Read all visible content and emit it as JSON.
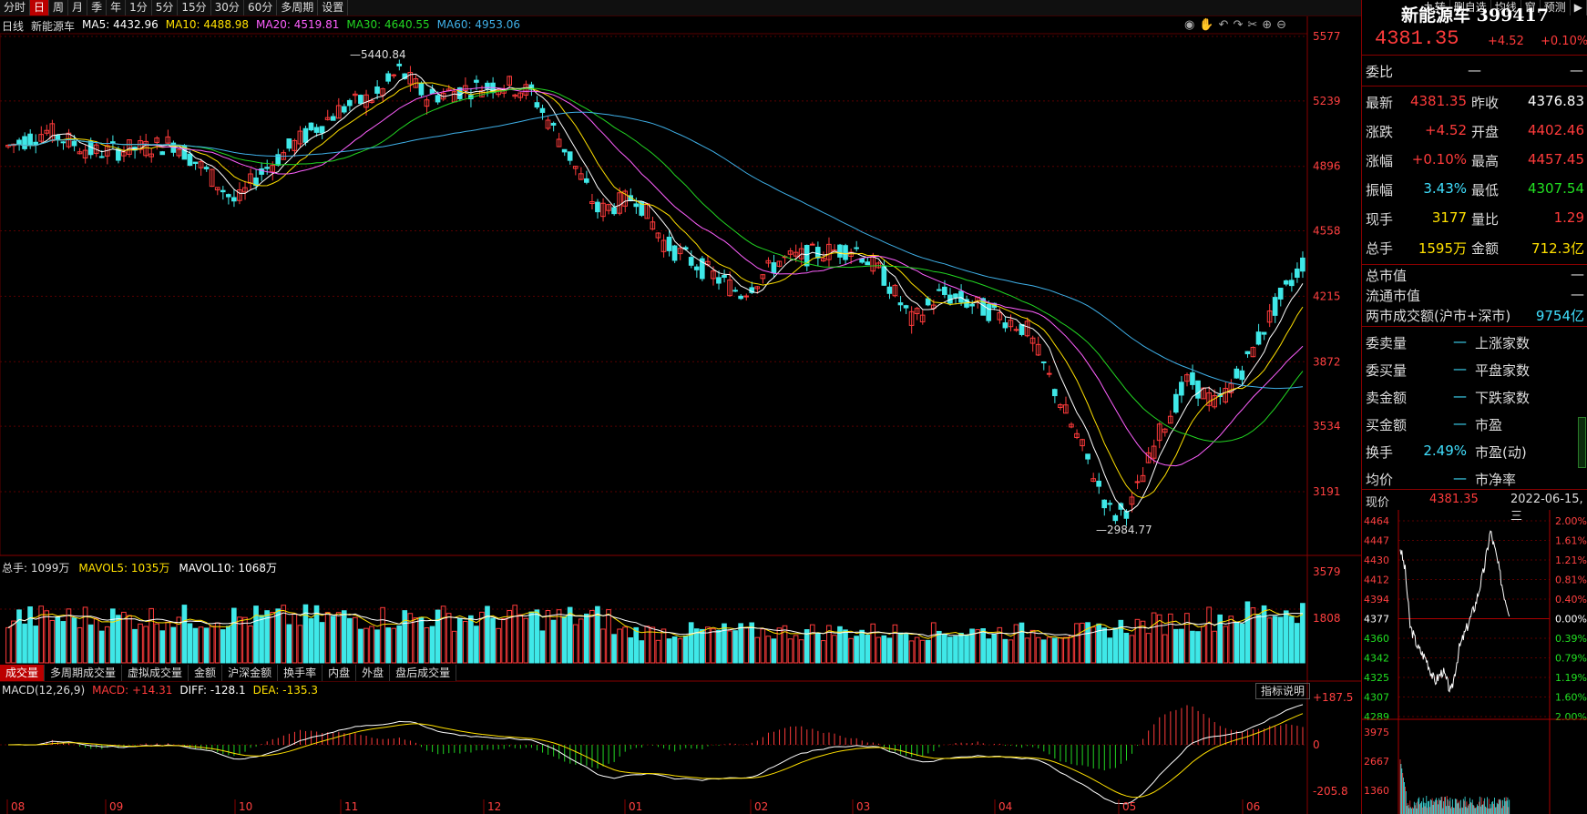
{
  "toolbar": {
    "left": [
      "分时",
      "日",
      "周",
      "月",
      "季",
      "年",
      "1分",
      "5分",
      "15分",
      "30分",
      "60分",
      "多周期",
      "设置"
    ],
    "active_index": 1,
    "right": [
      "九转",
      "删自选",
      "均线",
      "窗",
      "预测"
    ]
  },
  "main_legend": {
    "period": "日线",
    "name": "新能源车",
    "ma5": "MA5: 4432.96",
    "ma10": "MA10: 4488.98",
    "ma20": "MA20: 4519.81",
    "ma30": "MA30: 4640.55",
    "ma60": "MA60: 4953.06"
  },
  "colors": {
    "ma5": "#ffffff",
    "ma10": "#ffe000",
    "ma20": "#ff60ff",
    "ma30": "#22d622",
    "ma60": "#3fb0e8",
    "up": "#ff3b3b",
    "down": "#3fe8e8",
    "grid": "#5a0000"
  },
  "price_axis": [
    "5577",
    "5239",
    "4896",
    "4558",
    "4215",
    "3872",
    "3534",
    "3191"
  ],
  "annotations": {
    "high": "5440.84",
    "low": "2984.77"
  },
  "months": [
    "08",
    "09",
    "10",
    "11",
    "12",
    "01",
    "02",
    "03",
    "04",
    "05",
    "06"
  ],
  "volume_legend": {
    "total": "总手: 1099万",
    "mavol5": "MAVOL5: 1035万",
    "mavol10": "MAVOL10: 1068万"
  },
  "volume_axis": [
    "3579",
    "1808"
  ],
  "volume_tabs": [
    "成交量",
    "多周期成交量",
    "虚拟成交量",
    "金额",
    "沪深金额",
    "换手率",
    "内盘",
    "外盘",
    "盘后成交量"
  ],
  "macd_legend": {
    "name": "MACD(12,26,9)",
    "macd": "MACD: +14.31",
    "diff": "DIFF: -128.1",
    "dea": "DEA: -135.3"
  },
  "macd_axis": [
    "+187.5",
    "0",
    "-205.8"
  ],
  "indicator_button": "指标说明",
  "quote": {
    "title": "新能源车 399417",
    "price": "4381.35",
    "change": "+4.52",
    "pct": "+0.10%",
    "weibi_label": "委比",
    "weibi_val": "—",
    "weibi_val2": "—",
    "rows": [
      {
        "l1": "最新",
        "v1": "4381.35",
        "c1": "red",
        "l2": "昨收",
        "v2": "4376.83",
        "c2": "white"
      },
      {
        "l1": "涨跌",
        "v1": "+4.52",
        "c1": "red",
        "l2": "开盘",
        "v2": "4402.46",
        "c2": "red"
      },
      {
        "l1": "涨幅",
        "v1": "+0.10%",
        "c1": "red",
        "l2": "最高",
        "v2": "4457.45",
        "c2": "red"
      },
      {
        "l1": "振幅",
        "v1": "3.43%",
        "c1": "cyan",
        "l2": "最低",
        "v2": "4307.54",
        "c2": "green"
      },
      {
        "l1": "现手",
        "v1": "3177",
        "c1": "yellow",
        "l2": "量比",
        "v2": "1.29",
        "c2": "red"
      },
      {
        "l1": "总手",
        "v1": "1595万",
        "c1": "yellow",
        "l2": "金额",
        "v2": "712.3亿",
        "c2": "yellow"
      }
    ],
    "mv_rows": [
      {
        "label": "总市值",
        "val": "—"
      },
      {
        "label": "流通市值",
        "val": "—"
      },
      {
        "label": "两市成交额(沪市+深市)",
        "val": "9754亿"
      }
    ],
    "grid_rows": [
      {
        "l1": "委卖量",
        "v1": "—",
        "l2": "上涨家数",
        "v2": ""
      },
      {
        "l1": "委买量",
        "v1": "—",
        "l2": "平盘家数",
        "v2": ""
      },
      {
        "l1": "卖金额",
        "v1": "—",
        "l2": "下跌家数",
        "v2": ""
      },
      {
        "l1": "买金额",
        "v1": "—",
        "l2": "市盈",
        "v2": ""
      },
      {
        "l1": "换手",
        "v1": "2.49%",
        "l2": "市盈(动)",
        "v2": ""
      },
      {
        "l1": "均价",
        "v1": "—",
        "l2": "市净率",
        "v2": ""
      }
    ]
  },
  "intraday": {
    "label": "现价",
    "price": "4381.35",
    "date": "2022-06-15,三",
    "price_axis": [
      "4464",
      "4447",
      "4430",
      "4412",
      "4394",
      "4377",
      "4360",
      "4342",
      "4325",
      "4307",
      "4289"
    ],
    "pct_axis": [
      "2.00%",
      "1.61%",
      "1.21%",
      "0.81%",
      "0.40%",
      "0.00%",
      "0.39%",
      "0.79%",
      "1.19%",
      "1.60%",
      "2.00%"
    ],
    "vol_axis": [
      "3975",
      "2667",
      "1360"
    ]
  }
}
